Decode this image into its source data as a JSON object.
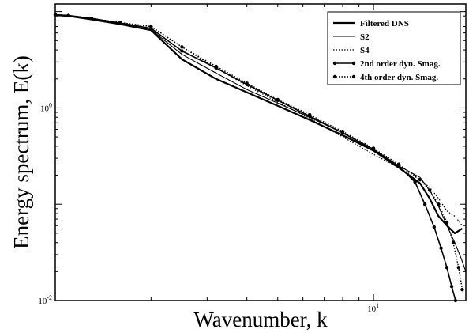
{
  "chart_data": {
    "type": "line",
    "xlabel": "Wavenumber, k",
    "ylabel": "Energy spectrum, E(k)",
    "xscale": "log",
    "yscale": "log",
    "xlim": [
      1,
      19.5
    ],
    "ylim": [
      0.01,
      12
    ],
    "legend_position": "top-right",
    "grid": false,
    "x_tick_labels": [
      {
        "value": 10,
        "base": "10",
        "exp": "1"
      }
    ],
    "y_tick_labels": [
      {
        "value": 1,
        "base": "10",
        "exp": "0"
      },
      {
        "value": 0.01,
        "base": "10",
        "exp": "-2"
      }
    ],
    "series": [
      {
        "name": "Filtered DNS",
        "style": "solid",
        "weight": 2.2,
        "marker": false,
        "x": [
          1.0,
          1.1,
          1.3,
          1.6,
          2.0,
          2.5,
          3.2,
          4.0,
          5.0,
          6.3,
          8.0,
          10.0,
          12.0,
          14.0,
          15.0,
          16.0,
          17.0,
          18.0,
          19.0
        ],
        "y": [
          9.2,
          9.0,
          8.3,
          7.4,
          6.4,
          3.2,
          2.0,
          1.45,
          1.05,
          0.75,
          0.52,
          0.36,
          0.24,
          0.165,
          0.115,
          0.075,
          0.06,
          0.05,
          0.056
        ]
      },
      {
        "name": "S2",
        "style": "solid",
        "weight": 1.1,
        "marker": false,
        "x": [
          1.0,
          1.1,
          1.3,
          1.6,
          2.0,
          2.5,
          3.2,
          4.0,
          5.0,
          6.3,
          8.0,
          10.0,
          12.0,
          14.0,
          15.0,
          16.0,
          17.0,
          18.0,
          18.8,
          19.5
        ],
        "y": [
          9.2,
          9.0,
          8.3,
          7.4,
          6.5,
          3.6,
          2.3,
          1.55,
          1.12,
          0.8,
          0.55,
          0.37,
          0.25,
          0.19,
          0.14,
          0.095,
          0.06,
          0.04,
          0.028,
          0.02
        ]
      },
      {
        "name": "S4",
        "style": "dotted",
        "weight": 1.2,
        "marker": false,
        "x": [
          1.0,
          1.1,
          1.3,
          1.6,
          2.0,
          2.5,
          3.2,
          4.0,
          5.0,
          6.3,
          8.0,
          10.0,
          12.0,
          14.0,
          15.0,
          16.0,
          17.0,
          18.0,
          19.0
        ],
        "y": [
          9.3,
          9.1,
          8.5,
          7.7,
          7.0,
          4.3,
          2.6,
          1.7,
          1.15,
          0.78,
          0.5,
          0.33,
          0.24,
          0.18,
          0.15,
          0.115,
          0.085,
          0.075,
          0.06
        ]
      },
      {
        "name": "2nd order dyn. Smag.",
        "style": "solid",
        "weight": 1.6,
        "marker": true,
        "x": [
          1.0,
          1.1,
          1.3,
          1.6,
          2.0,
          2.5,
          3.2,
          4.0,
          5.0,
          6.3,
          8.0,
          10.0,
          12.0,
          13.5,
          14.5,
          15.5,
          16.3,
          17.0,
          17.6,
          18.1
        ],
        "y": [
          9.3,
          9.1,
          8.5,
          7.6,
          6.7,
          3.9,
          2.6,
          1.75,
          1.2,
          0.82,
          0.55,
          0.37,
          0.25,
          0.17,
          0.1,
          0.058,
          0.035,
          0.022,
          0.014,
          0.01
        ]
      },
      {
        "name": "4th order dyn. Smag.",
        "style": "dotted",
        "weight": 1.4,
        "marker": true,
        "x": [
          1.0,
          1.1,
          1.3,
          1.6,
          2.0,
          2.5,
          3.2,
          4.0,
          5.0,
          6.3,
          8.0,
          10.0,
          12.0,
          14.0,
          15.0,
          16.0,
          17.0,
          17.8,
          18.5,
          19.0
        ],
        "y": [
          9.3,
          9.1,
          8.5,
          7.7,
          7.0,
          4.3,
          2.7,
          1.8,
          1.22,
          0.85,
          0.57,
          0.38,
          0.26,
          0.18,
          0.14,
          0.1,
          0.065,
          0.04,
          0.022,
          0.013
        ]
      }
    ]
  }
}
